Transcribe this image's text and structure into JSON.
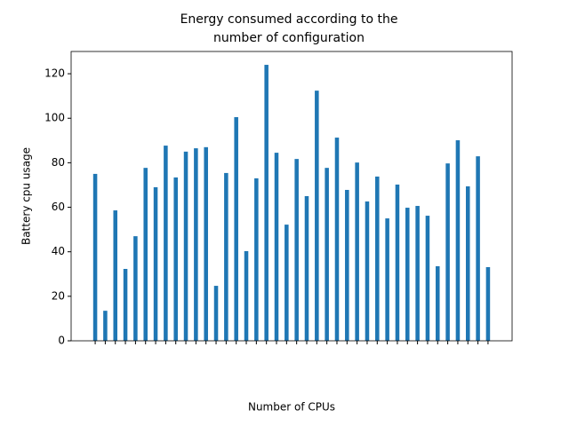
{
  "chart_data": {
    "type": "bar",
    "title": [
      "Energy consumed according to the",
      "number of configuration"
    ],
    "xlabel": "Number of CPUs",
    "ylabel": "Battery cpu usage",
    "categories": [
      null,
      null,
      null,
      null,
      null,
      null,
      null,
      null,
      null,
      null,
      null,
      null,
      null,
      null,
      null,
      null,
      null,
      null,
      null,
      null,
      null,
      null,
      null,
      null,
      null,
      null,
      null,
      null,
      null,
      null,
      null,
      null,
      null,
      null,
      null,
      null,
      null,
      null,
      null,
      null
    ],
    "values": [
      75,
      13.5,
      58.6,
      32.3,
      47,
      77.7,
      69,
      87.7,
      73.4,
      85,
      86.5,
      87,
      24.7,
      75.4,
      100.5,
      40.3,
      73,
      124,
      84.5,
      52.2,
      81.7,
      65,
      112.4,
      77.7,
      91.3,
      67.8,
      80.1,
      62.6,
      73.8,
      55,
      70.2,
      59.8,
      60.6,
      56.2,
      33.5,
      79.7,
      90.1,
      69.4,
      82.9,
      33.1
    ],
    "color": "#1f77b4",
    "ylim": [
      0,
      130
    ],
    "yticks": [
      0,
      20,
      40,
      60,
      80,
      100,
      120
    ],
    "grid": false
  }
}
